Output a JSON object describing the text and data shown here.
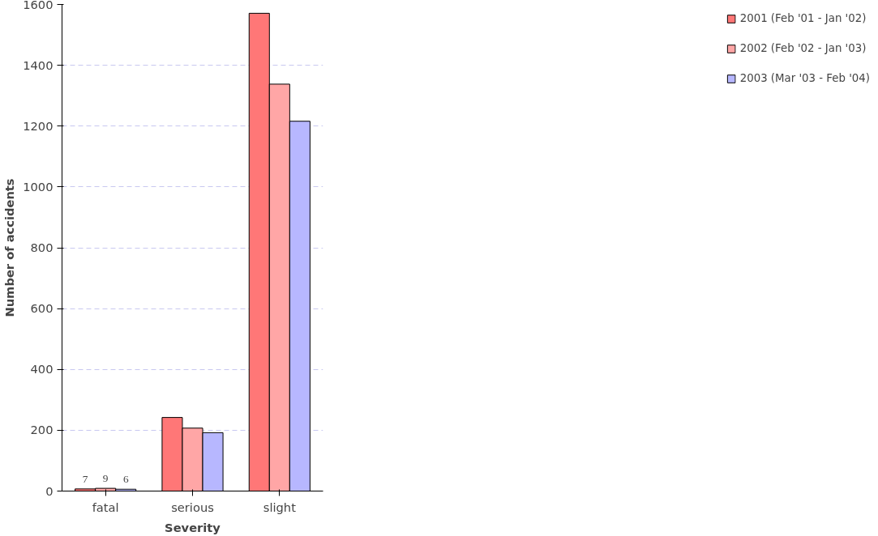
{
  "chart_data": {
    "type": "bar",
    "xlabel": "Severity",
    "ylabel": "Number of accidents",
    "categories": [
      "fatal",
      "serious",
      "slight"
    ],
    "series": [
      {
        "name": "2001 (Feb '01 - Jan '02)",
        "color": "#ff7777",
        "values": [
          7,
          242,
          1571
        ],
        "value_labels": [
          "7",
          null,
          null
        ]
      },
      {
        "name": "2002 (Feb '02 - Jan '03)",
        "color": "#ffa6a6",
        "values": [
          9,
          207,
          1338
        ],
        "value_labels": [
          "9",
          null,
          null
        ]
      },
      {
        "name": "2003 (Mar '03 - Feb '04)",
        "color": "#b7b7ff",
        "values": [
          6,
          192,
          1216
        ],
        "value_labels": [
          "6",
          null,
          null
        ]
      }
    ],
    "ylim": [
      0,
      1600
    ],
    "yticks": [
      0,
      200,
      400,
      600,
      800,
      1000,
      1200,
      1400,
      1600
    ],
    "grid": "y",
    "legend": "right"
  }
}
